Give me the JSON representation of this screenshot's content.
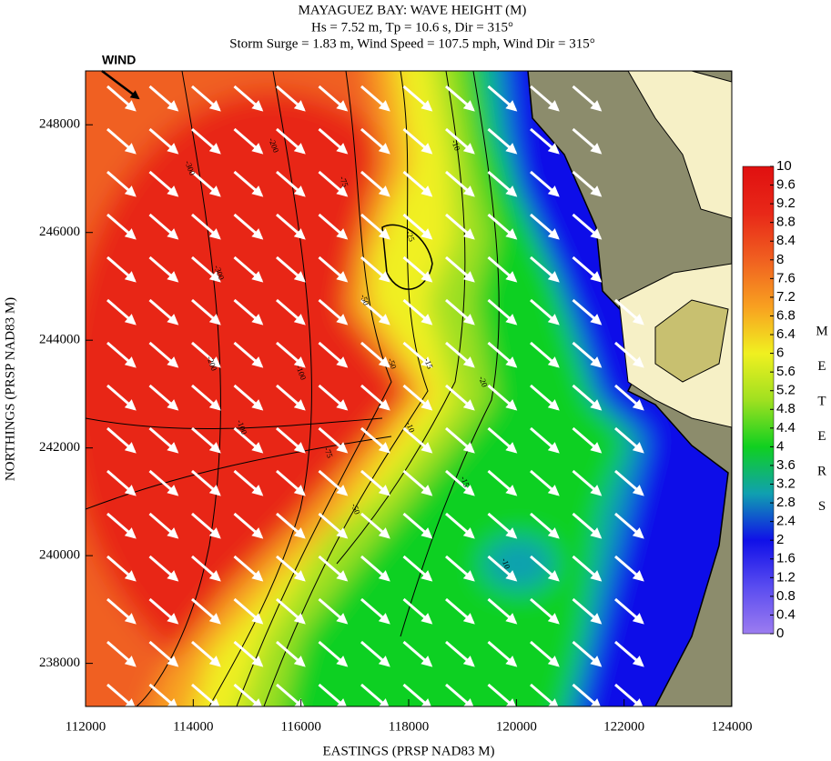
{
  "chart_data": {
    "type": "heatmap",
    "title": "MAYAGUEZ BAY: WAVE HEIGHT (M)",
    "subtitle": [
      "Hs = 7.52 m, Tp = 10.6 s, Dir = 315°",
      "Storm Surge = 1.83 m, Wind Speed = 107.5 mph, Wind Dir = 315°"
    ],
    "xlabel": "EASTINGS (PRSP NAD83 M)",
    "ylabel": "NORTHINGS (PRSP NAD83 M)",
    "xlim": [
      112000,
      124000
    ],
    "xticks": [
      112000,
      114000,
      116000,
      118000,
      120000,
      122000,
      124000
    ],
    "ylim": [
      237200,
      249000
    ],
    "yticks": [
      238000,
      240000,
      242000,
      244000,
      246000,
      248000
    ],
    "wind_label": "WIND",
    "contour_labels": [
      "-300",
      "-200",
      "-300",
      "-200",
      "-100",
      "-75",
      "-50",
      "-25",
      "-15",
      "-10",
      "-20",
      "-50",
      "-100",
      "-75",
      "-50",
      "-10",
      "-15",
      "-10"
    ],
    "colorbar": {
      "label_letters": [
        "M",
        "E",
        "T",
        "E",
        "R",
        "S"
      ],
      "lim": [
        0,
        10
      ],
      "ticks": [
        0,
        0.4,
        0.8,
        1.2,
        1.6,
        2,
        2.4,
        2.8,
        3.2,
        3.6,
        4,
        4.4,
        4.8,
        5.2,
        5.6,
        6,
        6.4,
        6.8,
        7.2,
        7.6,
        8,
        8.4,
        8.8,
        9.2,
        9.6,
        10
      ],
      "colors": [
        "#9c7cf0",
        "#5a4cf0",
        "#1010e8",
        "#10a0b0",
        "#10d020",
        "#a0e020",
        "#f0f020",
        "#f8a020",
        "#f06020",
        "#e82818",
        "#e01010"
      ]
    }
  }
}
